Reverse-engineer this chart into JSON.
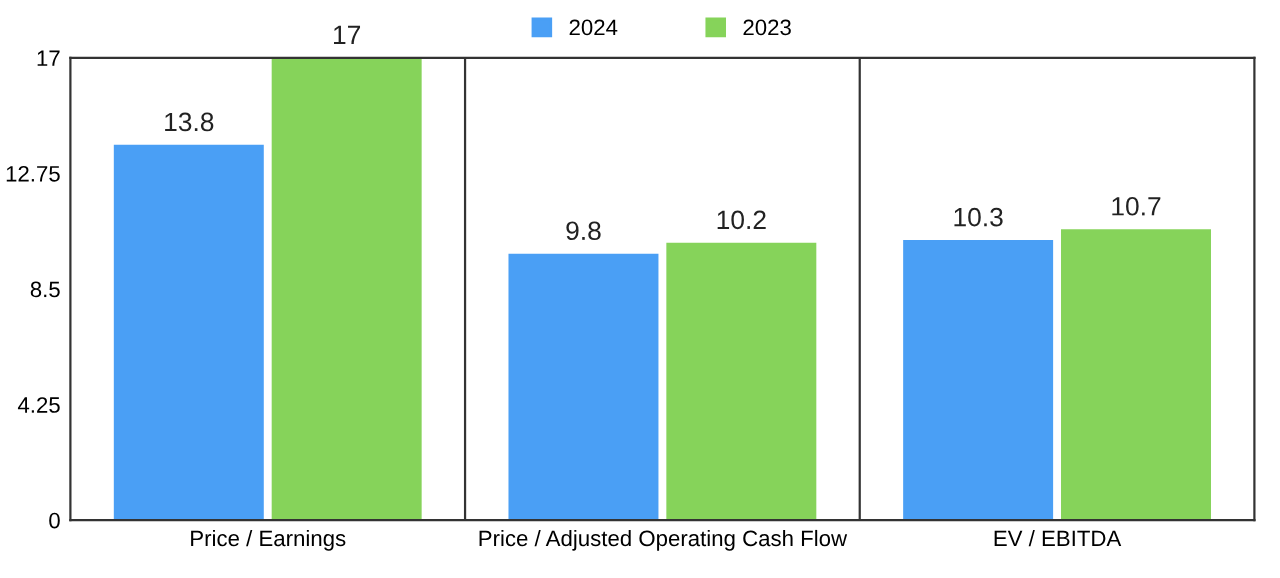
{
  "chart_data": {
    "type": "bar",
    "categories": [
      "Price / Earnings",
      "Price / Adjusted Operating Cash Flow",
      "EV / EBITDA"
    ],
    "series": [
      {
        "name": "2024",
        "color": "#4a9ff5",
        "values": [
          13.8,
          9.8,
          10.3
        ]
      },
      {
        "name": "2023",
        "color": "#86d35a",
        "values": [
          17,
          10.2,
          10.7
        ]
      }
    ],
    "ylim": [
      0,
      17
    ],
    "yticks": [
      0,
      4.25,
      8.5,
      12.75,
      17
    ],
    "data_labels": true,
    "grid": "x",
    "legend": "top"
  }
}
